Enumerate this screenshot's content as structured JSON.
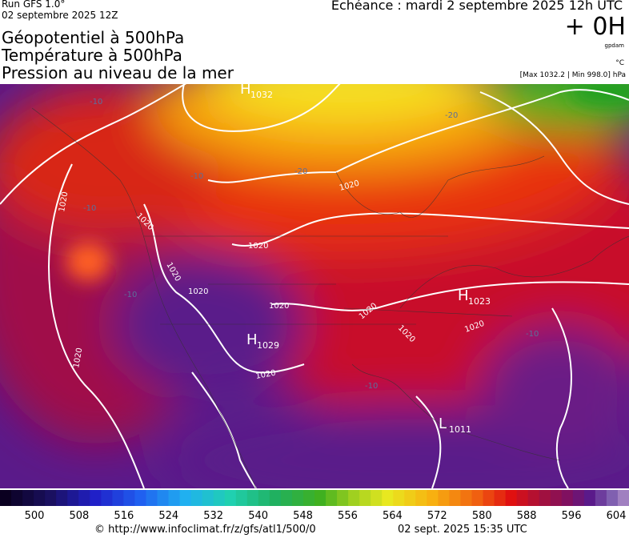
{
  "header": {
    "run": "Run GFS 1.0°",
    "date": "02 septembre 2025 12Z",
    "echeance": "Echéance : mardi 2 septembre 2025 12h UTC",
    "offset": "+ 0H",
    "unit_geo": "gpdam",
    "unit_temp": "°C",
    "pressure_range": "[Max 1032.2 | Min 998.0] hPa",
    "titles": [
      "Géopotentiel à 500hPa",
      "Température à 500hPa",
      "Pression au niveau de la mer"
    ]
  },
  "map": {
    "pressure_centers": [
      {
        "letter": "H",
        "value": "1032"
      },
      {
        "letter": "H",
        "value": "1029"
      },
      {
        "letter": "H",
        "value": "1023"
      },
      {
        "letter": "L",
        "value": "1011"
      }
    ],
    "isobar_labels": [
      "1020",
      "1020",
      "1020",
      "1020",
      "1020",
      "1020",
      "1020",
      "1020",
      "1020",
      "1020",
      "1020",
      "1020"
    ],
    "temperature_labels": [
      "-10",
      "-20",
      "-20",
      "-10",
      "-10",
      "-10",
      "-10",
      "-10"
    ]
  },
  "colorbar": {
    "ticks": [
      "500",
      "508",
      "516",
      "524",
      "532",
      "540",
      "548",
      "556",
      "564",
      "572",
      "580",
      "588",
      "596",
      "604"
    ]
  },
  "footer": {
    "url": "© http://www.infoclimat.fr/z/gfs/atl1/500/0",
    "timestamp": "02 sept. 2025 15:35 UTC"
  }
}
